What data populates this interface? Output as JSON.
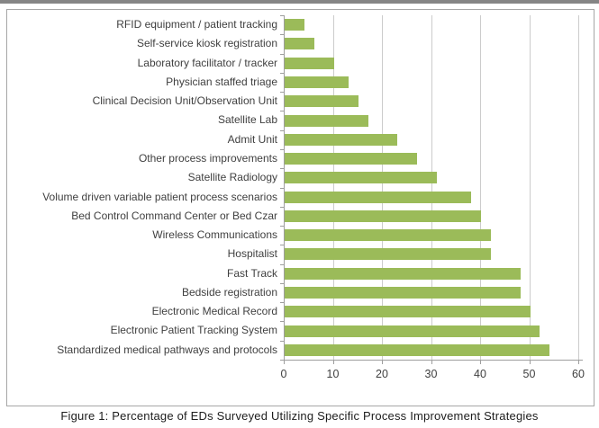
{
  "figure": {
    "caption": "Figure 1: Percentage of EDs Surveyed Utilizing Specific Process Improvement Strategies"
  },
  "chart_data": {
    "type": "bar",
    "orientation": "horizontal",
    "title": "",
    "xlabel": "",
    "ylabel": "",
    "categories": [
      "RFID equipment / patient tracking",
      "Self-service kiosk registration",
      "Laboratory facilitator / tracker",
      "Physician staffed triage",
      "Clinical Decision Unit/Observation Unit",
      "Satellite Lab",
      "Admit Unit",
      "Other process improvements",
      "Satellite Radiology",
      "Volume driven variable patient process scenarios",
      "Bed Control Command Center or Bed Czar",
      "Wireless Communications",
      "Hospitalist",
      "Fast Track",
      "Bedside registration",
      "Electronic Medical Record",
      "Electronic Patient Tracking System",
      "Standardized medical pathways and protocols"
    ],
    "values": [
      4,
      6,
      10,
      13,
      15,
      17,
      23,
      27,
      31,
      38,
      40,
      42,
      42,
      48,
      48,
      50,
      52,
      54
    ],
    "xlim": [
      0,
      60
    ],
    "x_ticks": [
      0,
      10,
      20,
      30,
      40,
      50,
      60
    ],
    "grid": "vertical-gridlines-on",
    "legend": "none",
    "bar_color": "#9bbb59",
    "gridline_color": "#cccccc",
    "axis_color": "#9e9e9e",
    "text_color": "#3f3f3f"
  }
}
